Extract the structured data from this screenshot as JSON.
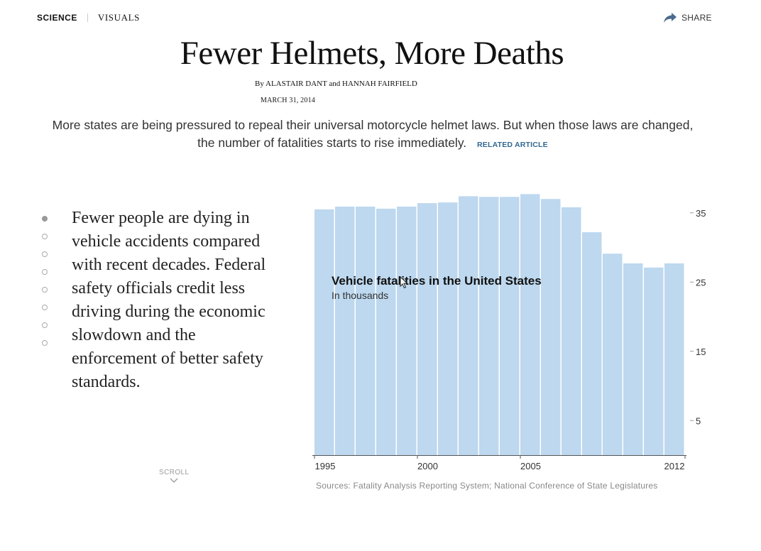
{
  "nav": {
    "section": "SCIENCE",
    "subsection": "VISUALS",
    "share_label": "SHARE",
    "share_icon": "share-arrow-icon"
  },
  "headline": "Fewer Helmets, More Deaths",
  "byline": {
    "prefix": "By",
    "author1": "ALASTAIR DANT",
    "joiner": "and",
    "author2": "HANNAH FAIRFIELD"
  },
  "date": "MARCH 31, 2014",
  "deck": {
    "text": "More states are being pressured to repeal their universal motorcycle helmet laws. But when those laws are changed, the number of fatalities starts to rise immediately.",
    "related_label": "RELATED ARTICLE"
  },
  "steps": {
    "count": 8,
    "active_index": 0
  },
  "story_text": "Fewer people are dying in vehicle accidents compared with recent decades. Federal safety officials credit less driving during the economic slowdown and the enforcement of better safety standards.",
  "scroll_label": "SCROLL",
  "colors": {
    "bar": "#bdd8ef",
    "accent": "#326891"
  },
  "chart_data": {
    "type": "bar",
    "title": "Vehicle fatalities in the United States",
    "subtitle": "In thousands",
    "xlabel": "",
    "ylabel": "",
    "x": [
      1995,
      1996,
      1997,
      1998,
      1999,
      2000,
      2001,
      2002,
      2003,
      2004,
      2005,
      2006,
      2007,
      2008,
      2009,
      2010,
      2011,
      2012
    ],
    "values": [
      35.5,
      35.9,
      35.9,
      35.6,
      35.9,
      36.4,
      36.5,
      37.4,
      37.3,
      37.3,
      37.7,
      37.0,
      35.8,
      32.2,
      29.1,
      27.7,
      27.1,
      27.7
    ],
    "x_tick_labels": [
      "1995",
      "2000",
      "2005",
      "2012"
    ],
    "y_ticks": [
      5,
      15,
      25,
      35
    ],
    "y_tick_labels": [
      "5",
      "15",
      "25",
      "35"
    ],
    "ylim": [
      0,
      38
    ],
    "grid": false,
    "y_axis_position": "right",
    "source": "Sources: Fatality Analysis Reporting System; National Conference of State Legislatures"
  }
}
